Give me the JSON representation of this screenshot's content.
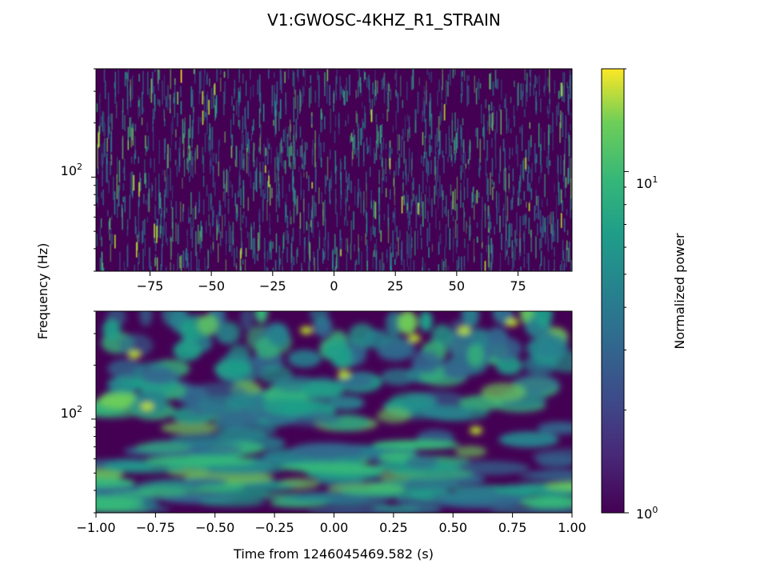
{
  "chart_data": {
    "type": "heatmap",
    "title": "V1:GWOSC-4KHZ_R1_STRAIN",
    "ylabel": "Frequency (Hz)",
    "colorbar": {
      "label": "Normalized power",
      "scale": "log",
      "range": [
        1,
        20
      ],
      "colormap": "viridis",
      "tick_labels": [
        "10^0",
        "10^1"
      ]
    },
    "panels": [
      {
        "name": "top",
        "x_range": [
          -97,
          97
        ],
        "x_ticks": [
          -75,
          -50,
          -25,
          0,
          25,
          50,
          75
        ],
        "x_tick_labels": [
          "−75",
          "−50",
          "−25",
          "0",
          "25",
          "50",
          "75"
        ],
        "y_scale": "log",
        "y_range": [
          30,
          400
        ],
        "y_tick_label": "10^2",
        "xlabel": ""
      },
      {
        "name": "bottom",
        "x_range": [
          -1,
          1
        ],
        "x_ticks": [
          -1,
          -0.75,
          -0.5,
          -0.25,
          0,
          0.25,
          0.5,
          0.75,
          1
        ],
        "x_tick_labels": [
          "−1.00",
          "−0.75",
          "−0.50",
          "−0.25",
          "0.00",
          "0.25",
          "0.50",
          "0.75",
          "1.00"
        ],
        "y_scale": "log",
        "y_range": [
          30,
          400
        ],
        "y_tick_label": "10^2",
        "xlabel": "Time from 1246045469.582 (s)"
      }
    ]
  }
}
